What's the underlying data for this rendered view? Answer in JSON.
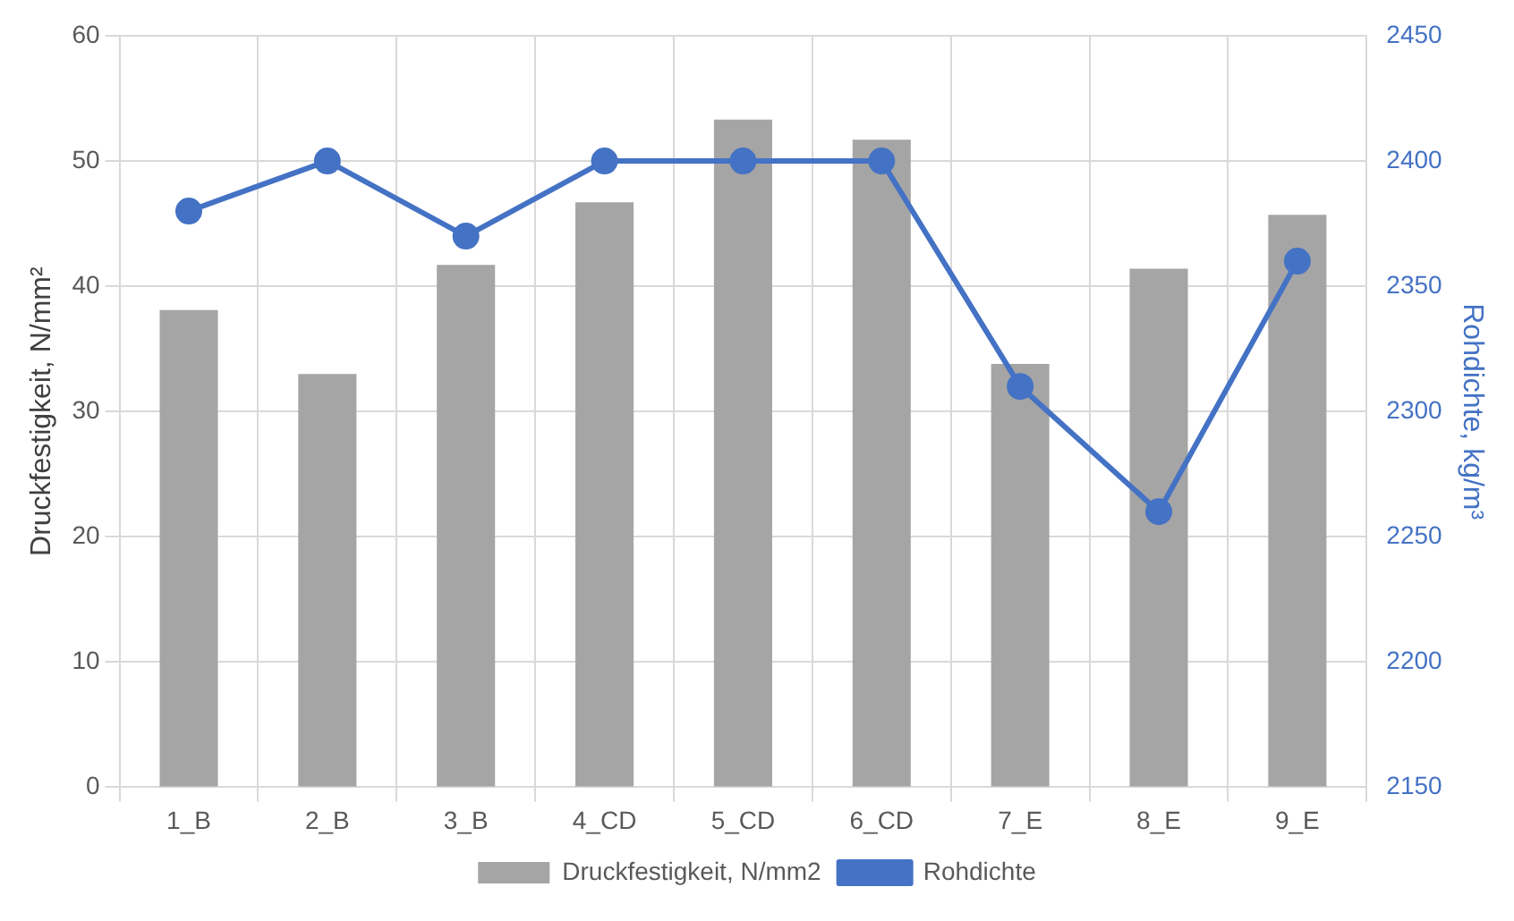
{
  "chart_data": {
    "type": "bar",
    "categories": [
      "1_B",
      "2_B",
      "3_B",
      "4_CD",
      "5_CD",
      "6_CD",
      "7_E",
      "8_E",
      "9_E"
    ],
    "ylabel": "Druckfestigkeit, N/mm²",
    "y2label": "Rohdichte, kg/m³",
    "series": [
      {
        "name": "Druckfestigkeit, N/mm2",
        "color": "#a5a5a5",
        "values": [
          38.1,
          33,
          41.7,
          46.7,
          53.3,
          51.7,
          33.8,
          41.4,
          45.7
        ]
      },
      {
        "name": "Rohdichte",
        "type": "line",
        "axis": "y2",
        "color": "#4472c4",
        "marker": "circle",
        "values": [
          2380,
          2400,
          2370,
          2400,
          2400,
          2400,
          2310,
          2260,
          2360
        ]
      }
    ],
    "ylim": [
      0,
      60
    ],
    "yticks": [
      0,
      10,
      20,
      30,
      40,
      50,
      60
    ],
    "y2lim": [
      2150,
      2450
    ],
    "y2ticks": [
      2150,
      2200,
      2250,
      2300,
      2350,
      2400,
      2450
    ],
    "grid": true,
    "legend": "bottom"
  }
}
